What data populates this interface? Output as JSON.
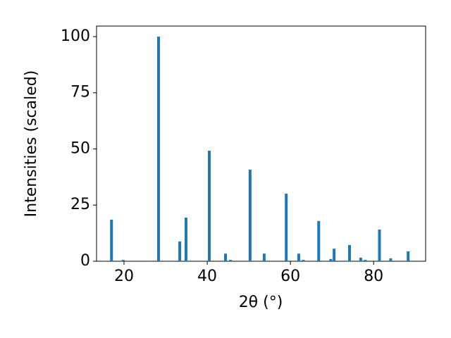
{
  "chart_data": {
    "type": "bar",
    "x_label": "2θ (°)",
    "y_label": "Intensities (scaled)",
    "color": "#1f77b4",
    "x": [
      17.0,
      19.8,
      28.3,
      33.4,
      34.9,
      40.5,
      44.4,
      45.6,
      50.3,
      53.7,
      59.0,
      62.0,
      63.1,
      66.8,
      69.7,
      70.5,
      74.2,
      76.9,
      78.0,
      81.4,
      84.1,
      88.3
    ],
    "values": [
      18.5,
      0.6,
      100,
      8.8,
      19.4,
      49.2,
      3.4,
      0.6,
      40.8,
      3.4,
      30.1,
      3.4,
      0.6,
      17.9,
      1.0,
      5.6,
      7.2,
      1.6,
      0.6,
      14.1,
      1.3,
      4.4
    ],
    "xlim": [
      13.4,
      92.5
    ],
    "ylim": [
      0,
      104.7
    ],
    "xticks": [
      20,
      40,
      60,
      80
    ],
    "yticks": [
      0,
      25,
      50,
      75,
      100
    ],
    "grid": false
  }
}
